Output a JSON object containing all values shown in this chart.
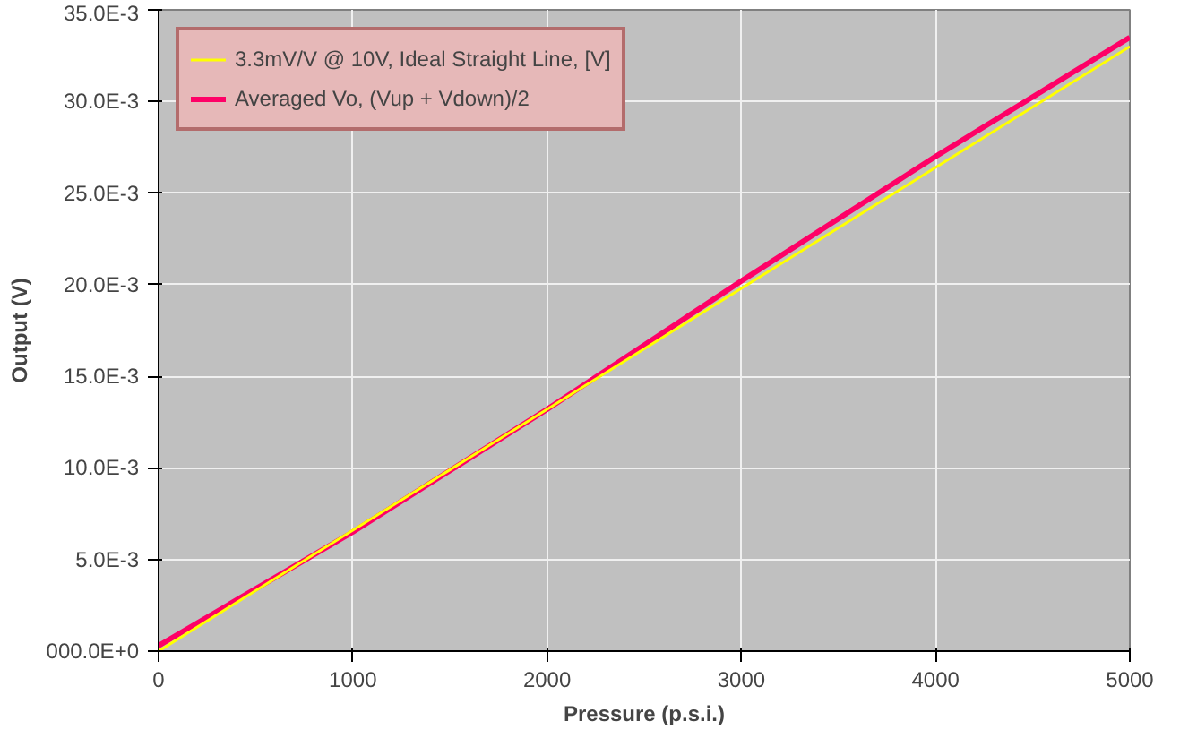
{
  "chart_data": {
    "type": "line",
    "xlabel": "Pressure (p.s.i.)",
    "ylabel": "Output (V)",
    "x": [
      0,
      1000,
      2000,
      3000,
      4000,
      5000
    ],
    "series": [
      {
        "name": "3.3mV/V @ 10V, Ideal Straight Line, [V]",
        "color": "#ffff00",
        "values": [
          0.0,
          0.0066,
          0.0132,
          0.0198,
          0.0264,
          0.033
        ]
      },
      {
        "name": "Averaged Vo, (Vup + Vdown)/2",
        "color": "#ff0066",
        "values": [
          0.0003,
          0.0065,
          0.0132,
          0.0202,
          0.027,
          0.0335
        ]
      }
    ],
    "xlim": [
      0,
      5000
    ],
    "xticks": [
      0,
      1000,
      2000,
      3000,
      4000,
      5000
    ],
    "ylim": [
      0,
      0.035
    ],
    "yticks": [
      {
        "value": 0,
        "label": "000.0E+0"
      },
      {
        "value": 0.005,
        "label": "5.0E-3"
      },
      {
        "value": 0.01,
        "label": "10.0E-3"
      },
      {
        "value": 0.015,
        "label": "15.0E-3"
      },
      {
        "value": 0.02,
        "label": "20.0E-3"
      },
      {
        "value": 0.025,
        "label": "25.0E-3"
      },
      {
        "value": 0.03,
        "label": "30.0E-3"
      },
      {
        "value": 0.035,
        "label": "35.0E-3"
      }
    ],
    "grid": true,
    "legend": "top left",
    "marker": "none",
    "line_style": "solid"
  }
}
